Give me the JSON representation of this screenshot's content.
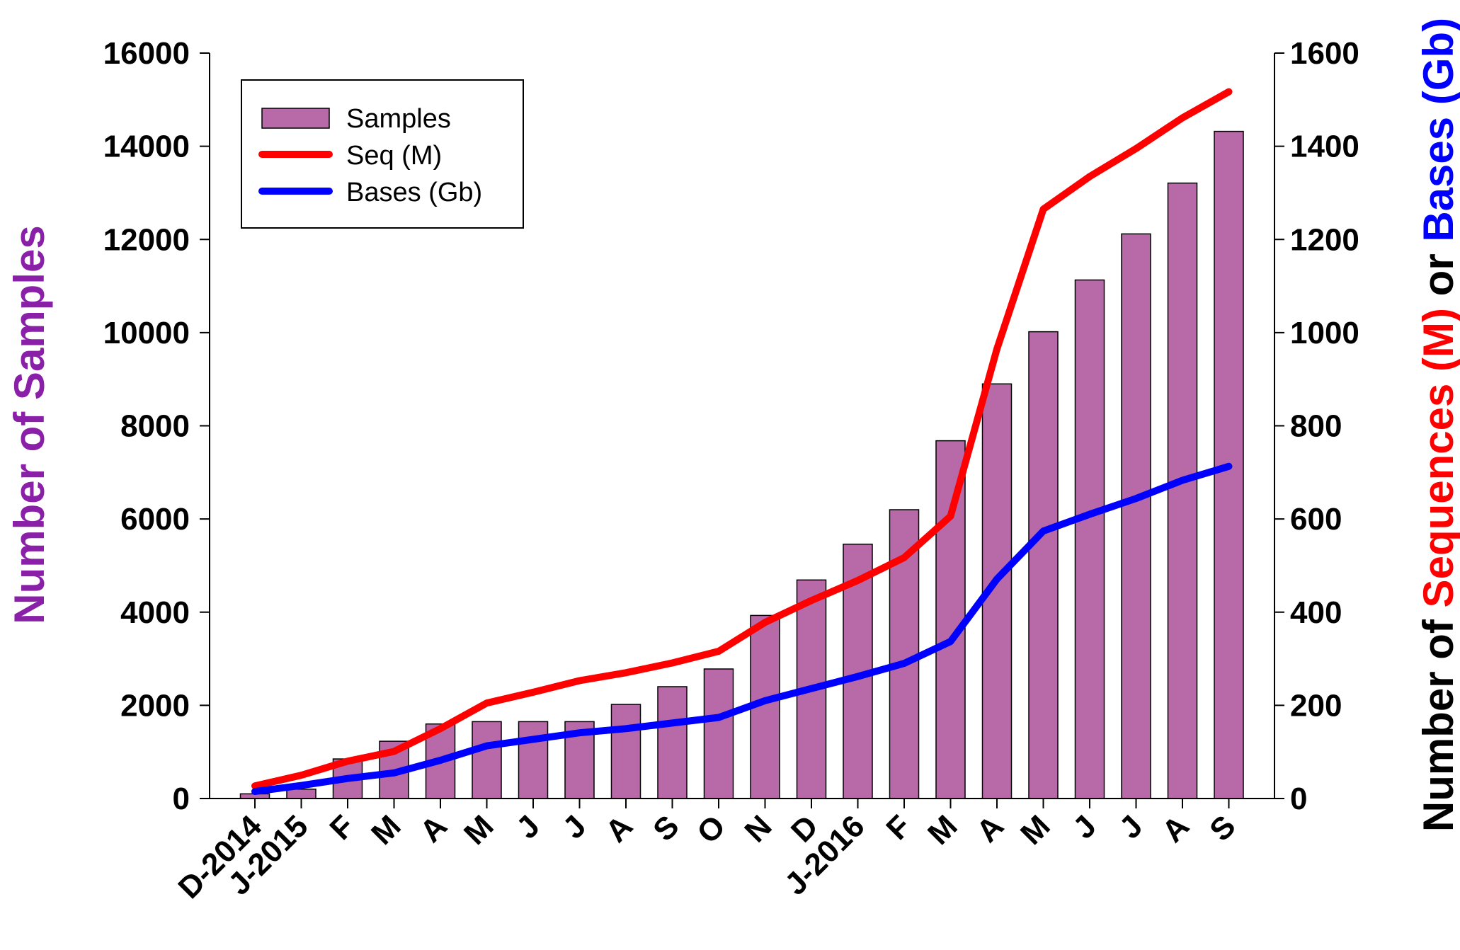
{
  "chart_data": {
    "type": "bar",
    "categories": [
      "D-2014",
      "J-2015",
      "F",
      "M",
      "A",
      "M",
      "J",
      "J",
      "A",
      "S",
      "O",
      "N",
      "D",
      "J-2016",
      "F",
      "M",
      "A",
      "M",
      "J",
      "J",
      "A",
      "S"
    ],
    "series": [
      {
        "name": "Samples",
        "type": "bar",
        "axis": "left",
        "color": "#b86aa8",
        "values": [
          100,
          200,
          850,
          1230,
          1600,
          1650,
          1650,
          1650,
          2020,
          2400,
          2780,
          3930,
          4690,
          5460,
          6200,
          7680,
          8900,
          10020,
          11130,
          12120,
          13210,
          14320
        ]
      },
      {
        "name": "Seq (M)",
        "type": "line",
        "axis": "right",
        "color": "#ff0000",
        "values": [
          27,
          50,
          80,
          101,
          150,
          205,
          228,
          253,
          270,
          291,
          316,
          378,
          425,
          468,
          517,
          606,
          965,
          1265,
          1335,
          1395,
          1461,
          1517
        ]
      },
      {
        "name": "Bases (Gb)",
        "type": "line",
        "axis": "right",
        "color": "#0000ff",
        "values": [
          15,
          28,
          43,
          55,
          82,
          113,
          127,
          141,
          150,
          162,
          174,
          210,
          236,
          262,
          290,
          337,
          471,
          574,
          610,
          644,
          683,
          713
        ]
      }
    ],
    "ylabel": "Number of Samples",
    "ylabel_color": "#8a20a8",
    "y2label": {
      "parts": [
        {
          "text": "Number of ",
          "color": "#000000"
        },
        {
          "text": "Sequences",
          "color": "#ff0000"
        },
        {
          "text": " (M)",
          "color": "#ff0000"
        },
        {
          "text": " or ",
          "color": "#000000"
        },
        {
          "text": "Bases",
          "color": "#0000ff"
        },
        {
          "text": " (Gb)",
          "color": "#0000ff"
        }
      ]
    },
    "ylim": [
      0,
      16000
    ],
    "yticks": [
      0,
      2000,
      4000,
      6000,
      8000,
      10000,
      12000,
      14000,
      16000
    ],
    "y2lim": [
      0,
      1600
    ],
    "y2ticks": [
      0,
      200,
      400,
      600,
      800,
      1000,
      1200,
      1400,
      1600
    ],
    "grid": false,
    "legend_position": "top-left"
  }
}
